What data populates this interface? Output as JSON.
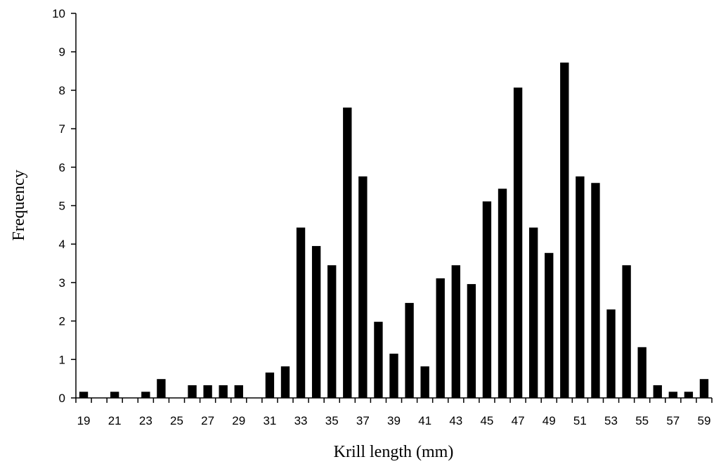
{
  "chart_data": {
    "type": "bar",
    "xlabel": "Krill length (mm)",
    "ylabel": "Frequency",
    "ylim": [
      0,
      10
    ],
    "yticks": [
      0,
      1,
      2,
      3,
      4,
      5,
      6,
      7,
      8,
      9,
      10
    ],
    "grid": false,
    "legend": "none",
    "bar_color": "#000000",
    "categories": [
      19,
      20,
      21,
      22,
      23,
      24,
      25,
      26,
      27,
      28,
      29,
      30,
      31,
      32,
      33,
      34,
      35,
      36,
      37,
      38,
      39,
      40,
      41,
      42,
      43,
      44,
      45,
      46,
      47,
      48,
      49,
      50,
      51,
      52,
      53,
      54,
      55,
      56,
      57,
      58,
      59
    ],
    "xtick_labels": [
      "19",
      "21",
      "23",
      "25",
      "27",
      "29",
      "31",
      "33",
      "35",
      "37",
      "39",
      "41",
      "43",
      "45",
      "47",
      "49",
      "51",
      "53",
      "55",
      "57",
      "59"
    ],
    "values": [
      0.16,
      0,
      0.16,
      0,
      0.16,
      0.49,
      0,
      0.33,
      0.33,
      0.33,
      0.33,
      0,
      0.66,
      0.82,
      4.43,
      3.95,
      3.45,
      7.55,
      5.76,
      1.98,
      1.15,
      2.47,
      0.82,
      3.11,
      3.45,
      2.96,
      5.11,
      5.44,
      8.07,
      4.43,
      3.77,
      8.72,
      5.76,
      5.59,
      2.3,
      3.45,
      1.32,
      0.33,
      0.16,
      0.16,
      0.49
    ]
  }
}
